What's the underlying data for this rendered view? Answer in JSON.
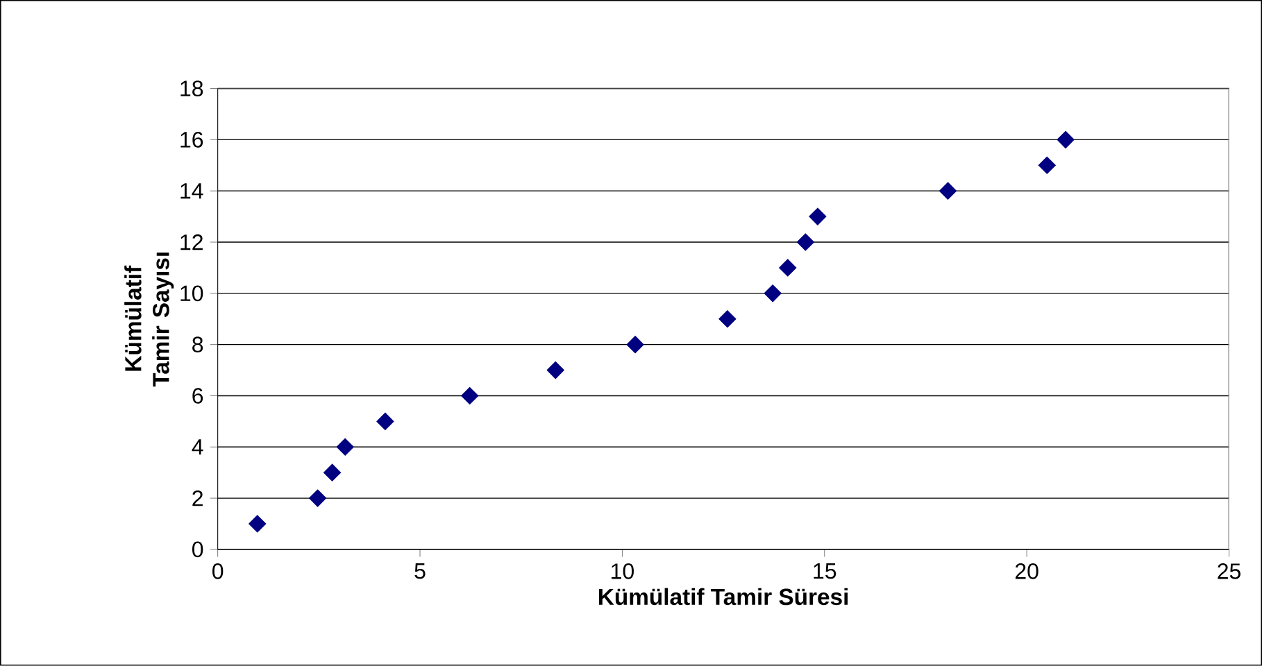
{
  "chart_data": {
    "type": "scatter",
    "xlabel": "Kümülatif Tamir Süresi",
    "ylabel": "Kümülatif Tamir Sayısı",
    "x": [
      0.98,
      2.47,
      2.83,
      3.15,
      4.14,
      6.23,
      8.35,
      10.32,
      12.6,
      13.72,
      14.09,
      14.53,
      14.83,
      18.05,
      20.5,
      20.96
    ],
    "series": [
      {
        "color": "#000080",
        "values": [
          1,
          2,
          3,
          4,
          5,
          6,
          7,
          8,
          9,
          10,
          11,
          12,
          13,
          14,
          15,
          16
        ]
      }
    ],
    "xlim": [
      0,
      25
    ],
    "ylim": [
      0,
      18
    ],
    "xticks": [
      0,
      5,
      10,
      15,
      20,
      25
    ],
    "yticks": [
      0,
      2,
      4,
      6,
      8,
      10,
      12,
      14,
      16,
      18
    ],
    "grid": "y",
    "marker": "diamond"
  }
}
